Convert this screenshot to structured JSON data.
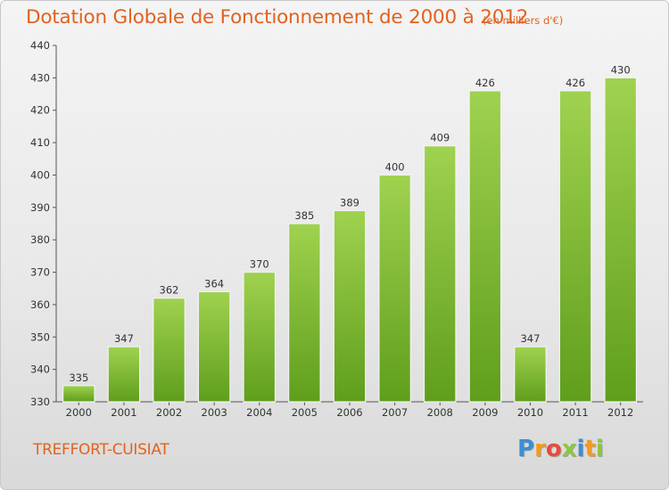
{
  "chart_data": {
    "type": "bar",
    "title": "Dotation Globale de Fonctionnement de 2000 à 2012",
    "subtitle": "(en milliers d'€)",
    "categories": [
      "2000",
      "2001",
      "2002",
      "2003",
      "2004",
      "2005",
      "2006",
      "2007",
      "2008",
      "2009",
      "2010",
      "2011",
      "2012"
    ],
    "values": [
      335,
      347,
      362,
      364,
      370,
      385,
      389,
      400,
      409,
      426,
      347,
      426,
      430
    ],
    "ylim": [
      330,
      440
    ],
    "yticks": [
      330,
      340,
      350,
      360,
      370,
      380,
      390,
      400,
      410,
      420,
      430,
      440
    ],
    "grid": false,
    "bar_color": "#7cbf3a"
  },
  "footer": {
    "commune": "TREFFORT-CUISIAT"
  },
  "logo": {
    "letters": [
      "P",
      "r",
      "o",
      "x",
      "i",
      "t",
      "i"
    ],
    "colors": [
      "#3a8fd6",
      "#f39a1c",
      "#e84a3c",
      "#8cc63f",
      "#3a8fd6",
      "#f39a1c",
      "#8cc63f"
    ]
  }
}
